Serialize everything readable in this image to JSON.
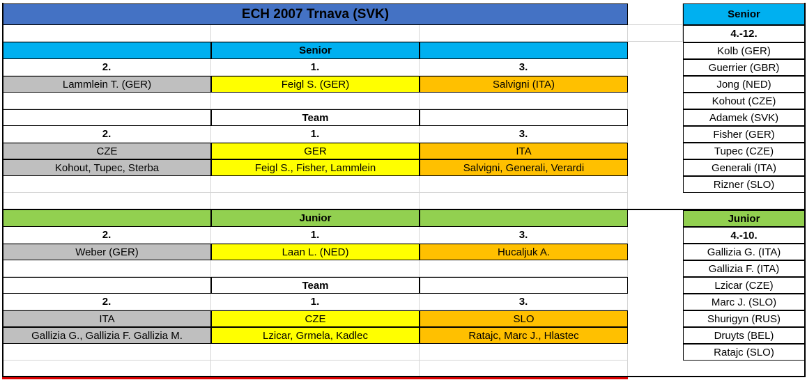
{
  "title": "ECH 2007 Trnava (SVK)",
  "senior": {
    "header": "Senior",
    "individual_places": {
      "second": "2.",
      "first": "1.",
      "third": "3."
    },
    "individual": {
      "second": "Lammlein T. (GER)",
      "first": "Feigl S. (GER)",
      "third": "Salvigni (ITA)"
    },
    "team_header": "Team",
    "team_places": {
      "second": "2.",
      "first": "1.",
      "third": "3."
    },
    "team_nations": {
      "second": "CZE",
      "first": "GER",
      "third": "ITA"
    },
    "team_members": {
      "second": "Kohout, Tupec, Sterba",
      "first": "Feigl S., Fisher, Lammlein",
      "third": "Salvigni, Generali, Verardi"
    }
  },
  "junior": {
    "header": "Junior",
    "individual_places": {
      "second": "2.",
      "first": "1.",
      "third": "3."
    },
    "individual": {
      "second": "Weber (GER)",
      "first": "Laan L. (NED)",
      "third": "Hucaljuk A."
    },
    "team_header": "Team",
    "team_places": {
      "second": "2.",
      "first": "1.",
      "third": "3."
    },
    "team_nations": {
      "second": "ITA",
      "first": "CZE",
      "third": "SLO"
    },
    "team_members": {
      "second": "Gallizia G., Gallizia F. Gallizia M.",
      "first": "Lzicar, Grmela, Kadlec",
      "third": "Ratajc, Marc J., Hlastec"
    }
  },
  "side_senior": {
    "header": "Senior",
    "range": "4.-12.",
    "names": [
      "Kolb (GER)",
      "Guerrier (GBR)",
      "Jong (NED)",
      "Kohout (CZE)",
      "Adamek (SVK)",
      "Fisher (GER)",
      "Tupec (CZE)",
      "Generali (ITA)",
      "Rizner (SLO)"
    ]
  },
  "side_junior": {
    "header": "Junior",
    "range": "4.-10.",
    "names": [
      "Gallizia G. (ITA)",
      "Gallizia F. (ITA)",
      "Lzicar (CZE)",
      "Marc J. (SLO)",
      "Shurigyn (RUS)",
      "Druyts (BEL)",
      "Ratajc (SLO)"
    ]
  }
}
